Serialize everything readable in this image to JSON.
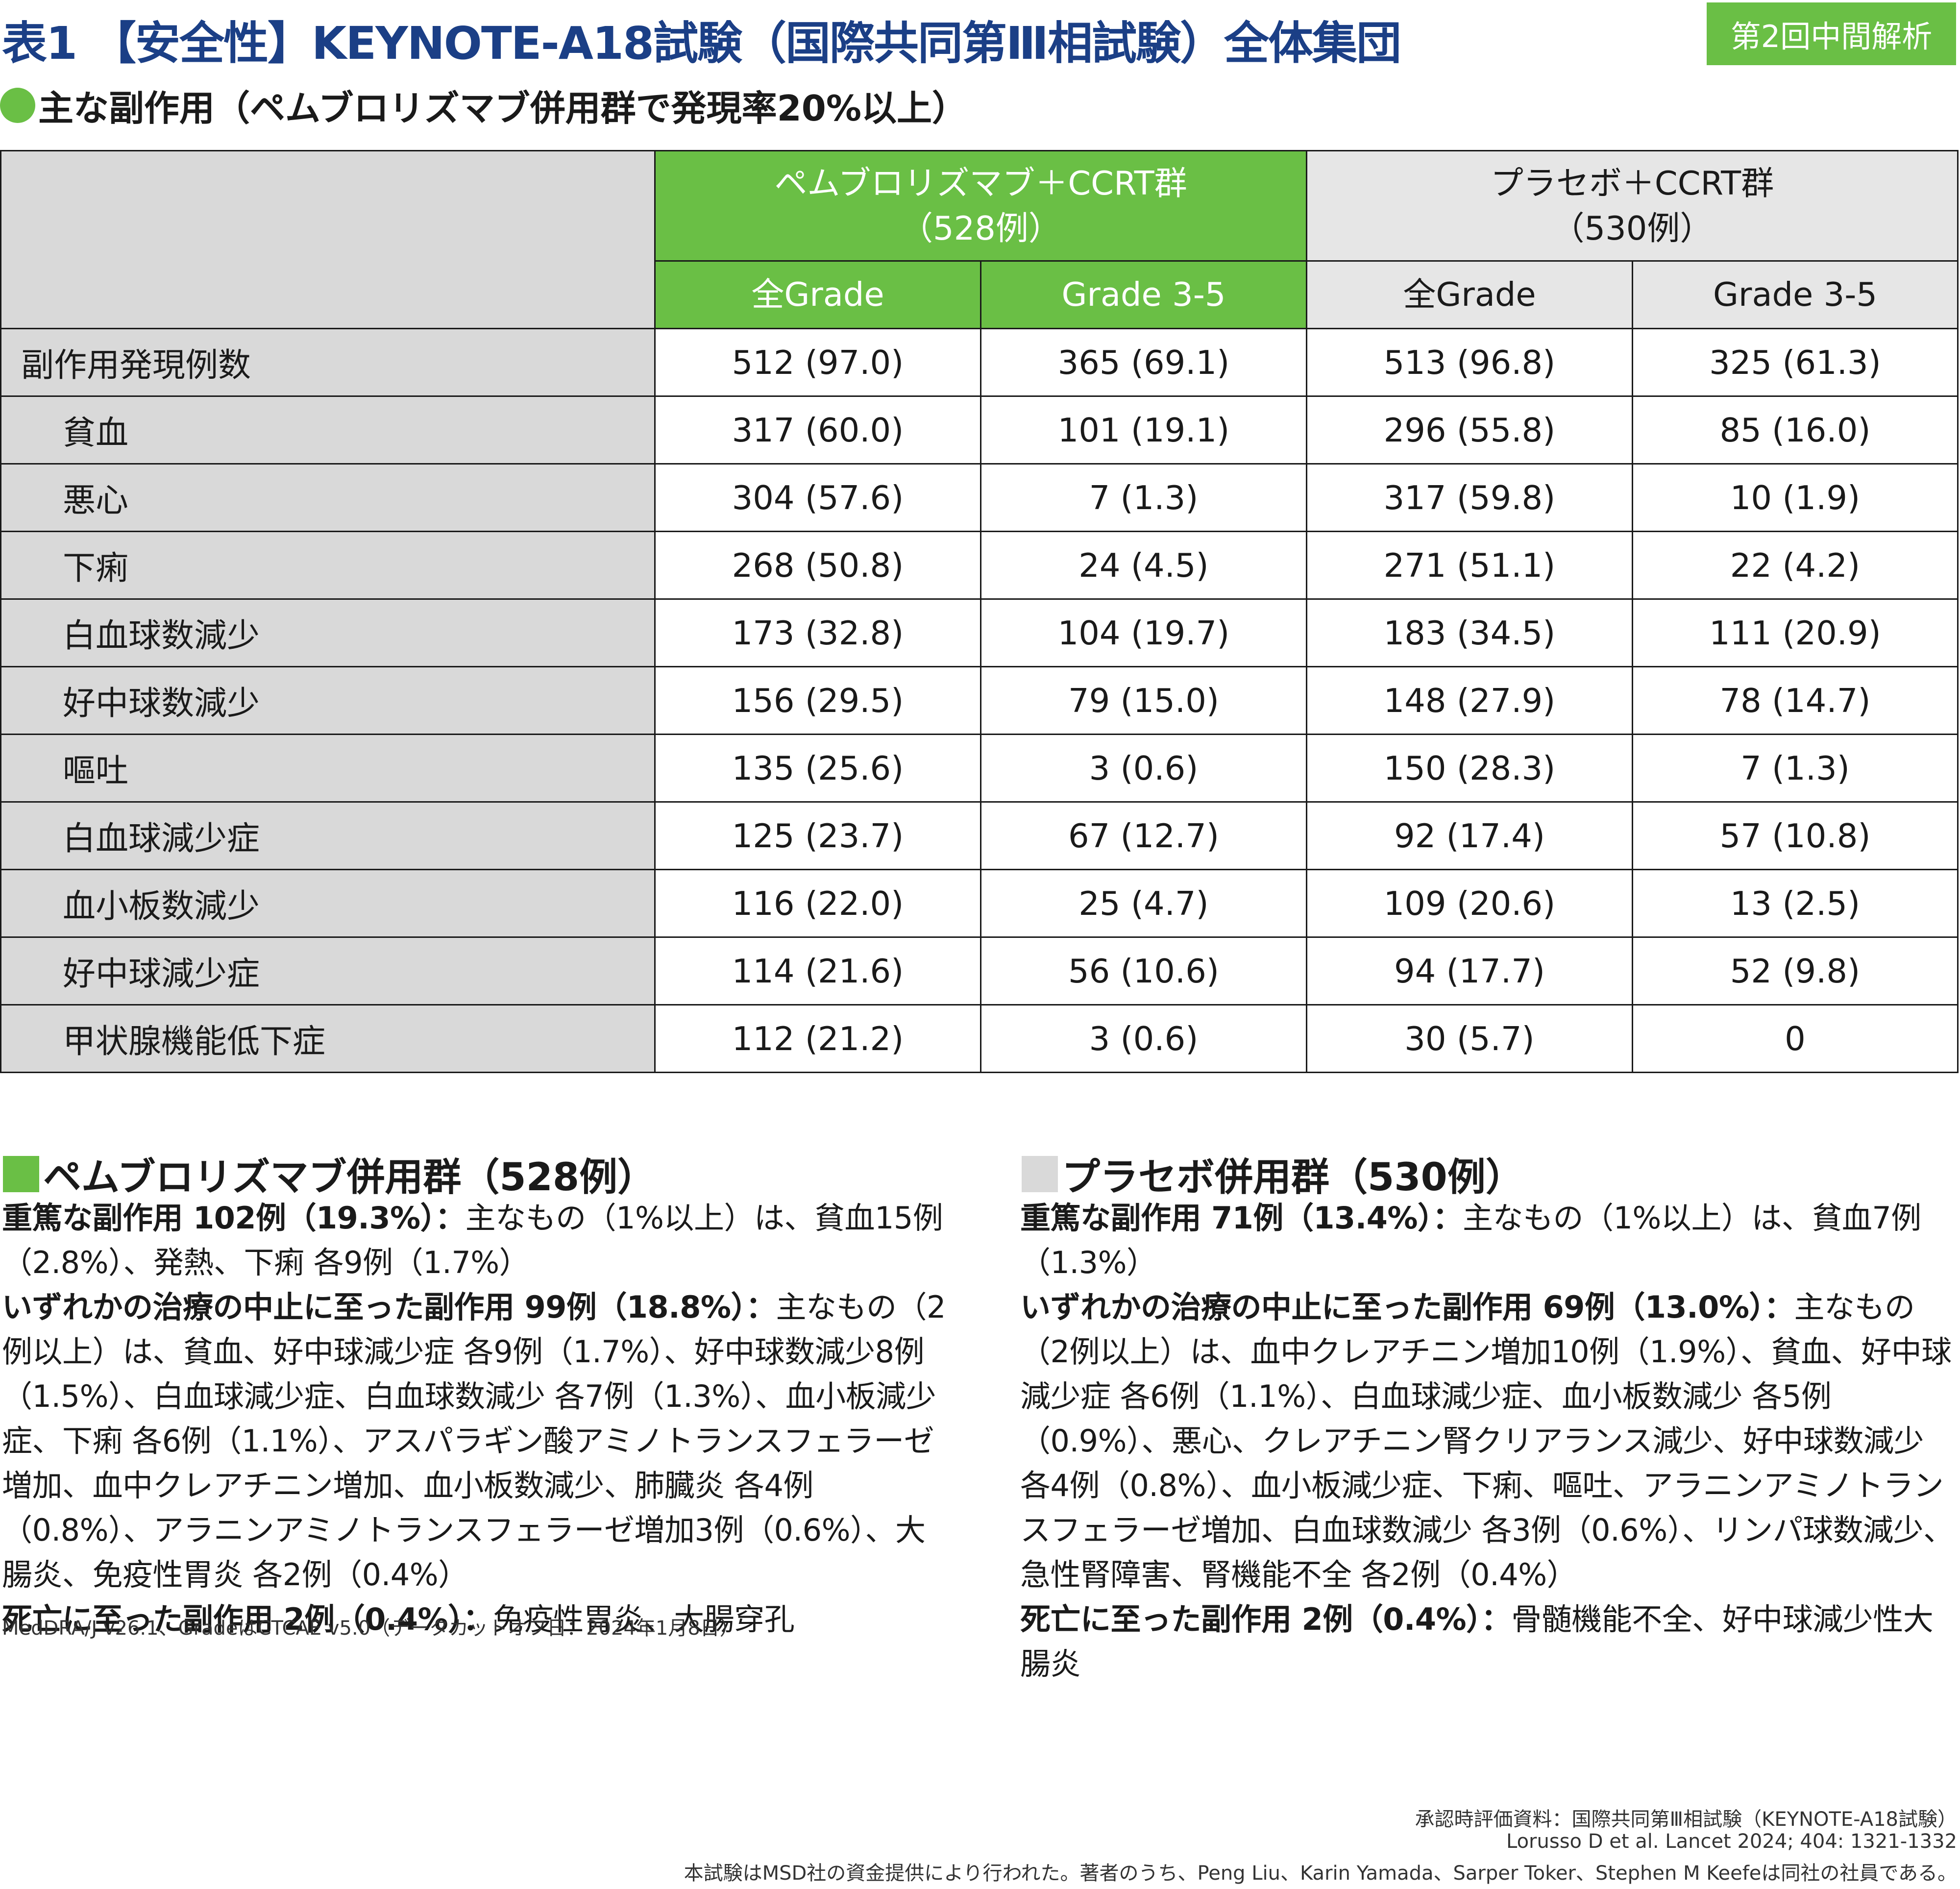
{
  "header": {
    "title": "表1 【安全性】KEYNOTE-A18試験（国際共同第Ⅲ相試験）全体集団",
    "badge": "第2回中間解析",
    "subtitle": "主な副作用（ペムブロリズマブ併用群で発現率20%以上）",
    "colors": {
      "green": "#6abf45",
      "title_blue": "#1b3f86",
      "gray": "#d9d9d9"
    }
  },
  "table": {
    "group_pembro_line1": "ペムブロリズマブ＋CCRT群",
    "group_pembro_line2": "（528例）",
    "group_placebo_line1": "プラセボ＋CCRT群",
    "group_placebo_line2": "（530例）",
    "col_all_grade": "全Grade",
    "col_grade35": "Grade 3-5",
    "rows": [
      {
        "label": "副作用発現例数",
        "c1": "512 (97.0)",
        "c2": "365 (69.1)",
        "c3": "513 (96.8)",
        "c4": "325 (61.3)"
      },
      {
        "label": "貧血",
        "c1": "317 (60.0)",
        "c2": "101 (19.1)",
        "c3": "296 (55.8)",
        "c4": "85 (16.0)"
      },
      {
        "label": "悪心",
        "c1": "304 (57.6)",
        "c2": "7 (1.3)",
        "c3": "317 (59.8)",
        "c4": "10 (1.9)"
      },
      {
        "label": "下痢",
        "c1": "268 (50.8)",
        "c2": "24 (4.5)",
        "c3": "271 (51.1)",
        "c4": "22 (4.2)"
      },
      {
        "label": "白血球数減少",
        "c1": "173 (32.8)",
        "c2": "104 (19.7)",
        "c3": "183 (34.5)",
        "c4": "111 (20.9)"
      },
      {
        "label": "好中球数減少",
        "c1": "156 (29.5)",
        "c2": "79 (15.0)",
        "c3": "148 (27.9)",
        "c4": "78 (14.7)"
      },
      {
        "label": "嘔吐",
        "c1": "135 (25.6)",
        "c2": "3 (0.6)",
        "c3": "150 (28.3)",
        "c4": "7 (1.3)"
      },
      {
        "label": "白血球減少症",
        "c1": "125 (23.7)",
        "c2": "67 (12.7)",
        "c3": "92 (17.4)",
        "c4": "57 (10.8)"
      },
      {
        "label": "血小板数減少",
        "c1": "116 (22.0)",
        "c2": "25 (4.7)",
        "c3": "109 (20.6)",
        "c4": "13 (2.5)"
      },
      {
        "label": "好中球減少症",
        "c1": "114 (21.6)",
        "c2": "56 (10.6)",
        "c3": "94 (17.7)",
        "c4": "52 (9.8)"
      },
      {
        "label": "甲状腺機能低下症",
        "c1": "112 (21.2)",
        "c2": "3 (0.6)",
        "c3": "30 (5.7)",
        "c4": "0"
      }
    ]
  },
  "pembro_section": {
    "title": "ペムブロリズマブ併用群（528例）",
    "serious_label": "重篤な副作用 102例（19.3%）：",
    "serious_text": "主なもの（1%以上）は、貧血15例（2.8%）、発熱、下痢 各9例（1.7%）",
    "discontinue_label": "いずれかの治療の中止に至った副作用 99例（18.8%）：",
    "discontinue_text": "主なもの（2例以上）は、貧血、好中球減少症 各9例（1.7%）、好中球数減少8例（1.5%）、白血球減少症、白血球数減少 各7例（1.3%）、血小板減少症、下痢 各6例（1.1%）、アスパラギン酸アミノトランスフェラーゼ増加、血中クレアチニン増加、血小板数減少、肺臓炎 各4例（0.8%）、アラニンアミノトランスフェラーゼ増加3例（0.6%）、大腸炎、免疫性胃炎 各2例（0.4%）",
    "death_label": "死亡に至った副作用 2例（0.4%）：",
    "death_text": "免疫性胃炎、大腸穿孔"
  },
  "placebo_section": {
    "title": "プラセボ併用群（530例）",
    "serious_label": "重篤な副作用 71例（13.4%）：",
    "serious_text": "主なもの（1%以上）は、貧血7例（1.3%）",
    "discontinue_label": "いずれかの治療の中止に至った副作用 69例（13.0%）：",
    "discontinue_text": "主なもの（2例以上）は、血中クレアチニン増加10例（1.9%）、貧血、好中球減少症 各6例（1.1%）、白血球減少症、血小板数減少 各5例（0.9%）、悪心、クレアチニン腎クリアランス減少、好中球数減少 各4例（0.8%）、血小板減少症、下痢、嘔吐、アラニンアミノトランスフェラーゼ増加、白血球数減少 各3例（0.6%）、リンパ球数減少、急性腎障害、腎機能不全 各2例（0.4%）",
    "death_label": "死亡に至った副作用 2例（0.4%）：",
    "death_text": "骨髄機能不全、好中球減少性大腸炎"
  },
  "footnote": "MedDRA/J v26.1、GradeはCTCAE v5.0（データカットオフ日：2024年1月8日）",
  "source": {
    "line1": "承認時評価資料：国際共同第Ⅲ相試験（KEYNOTE-A18試験）",
    "line2": "Lorusso D et al. Lancet 2024; 404: 1321-1332",
    "line3": "本試験はMSD社の資金提供により行われた。著者のうち、Peng Liu、Karin Yamada、Sarper Toker、Stephen M Keefeは同社の社員である。"
  }
}
